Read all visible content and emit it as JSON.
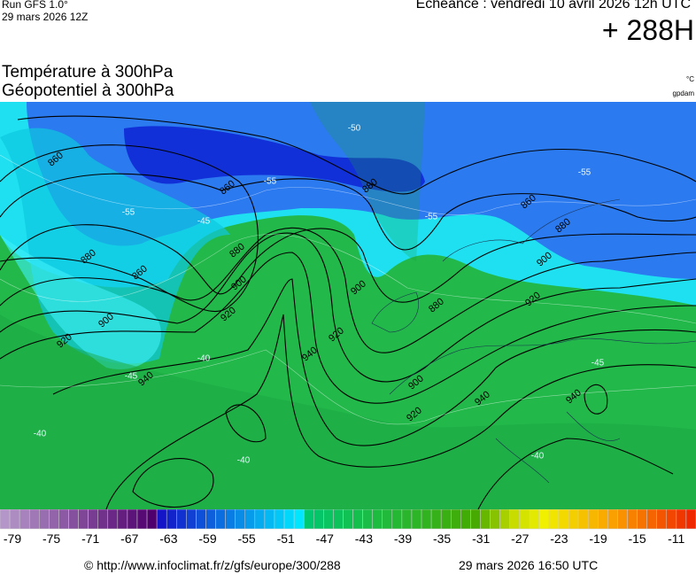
{
  "header": {
    "run": "Run GFS 1.0°",
    "run_date": "29 mars 2026 12Z",
    "echeance": "Echéance : vendredi 10 avril 2026 12h UTC",
    "lead": "+ 288H",
    "title_temp": "Température à 300hPa",
    "title_geo": "Géopotentiel à 300hPa",
    "unit_temp": "°C",
    "unit_geo": "gpdam"
  },
  "map": {
    "contour_labels": [
      "860",
      "880",
      "860",
      "900",
      "920",
      "940",
      "860",
      "880",
      "900",
      "920",
      "940",
      "920",
      "900",
      "880",
      "860",
      "880",
      "900",
      "920",
      "880",
      "900",
      "920",
      "940",
      "940"
    ],
    "temperature_labels": [
      "-55",
      "-55",
      "-55",
      "-45",
      "-40",
      "-40",
      "-45",
      "-40",
      "-50",
      "-55",
      "-45",
      "-40"
    ]
  },
  "legend": {
    "labels": [
      "-79",
      "-75",
      "-71",
      "-67",
      "-63",
      "-59",
      "-55",
      "-51",
      "-47",
      "-43",
      "-39",
      "-35",
      "-31",
      "-27",
      "-23",
      "-19",
      "-15",
      "-11"
    ]
  },
  "footer": {
    "url": "© http://www.infoclimat.fr/z/gfs/europe/300/288",
    "timestamp": "29 mars 2026 16:50 UTC"
  }
}
